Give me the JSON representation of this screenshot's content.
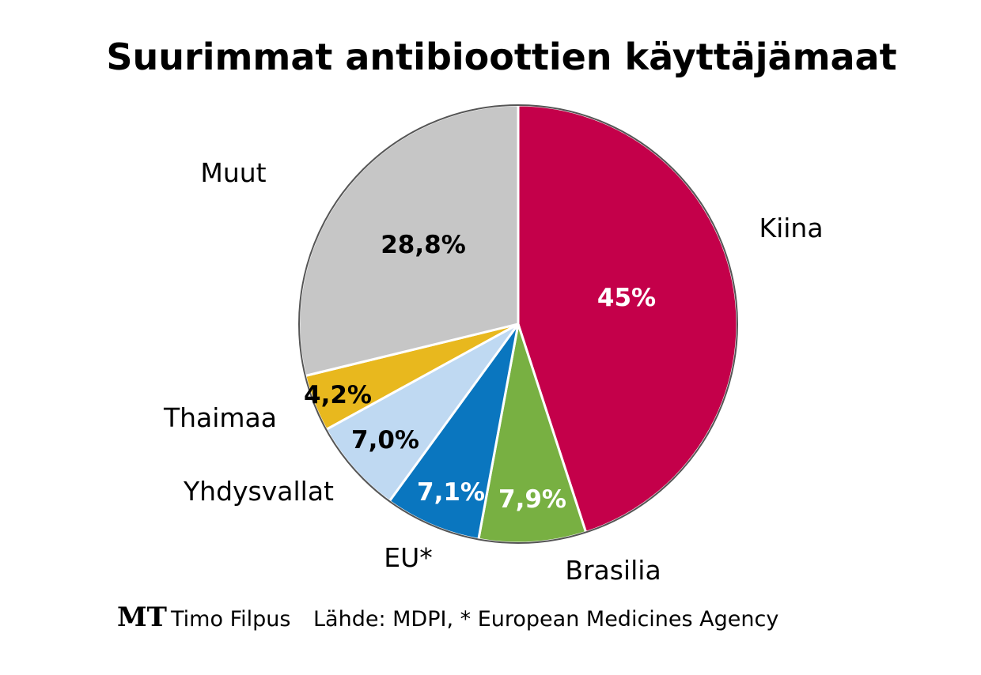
{
  "chart_data": {
    "type": "pie",
    "title": "Suurimmat antibioottien käyttäjämaat",
    "slices": [
      {
        "name": "Kiina",
        "value": 45.0,
        "label": "45%",
        "color": "#c4004a",
        "text_color": "#ffffff"
      },
      {
        "name": "Brasilia",
        "value": 7.9,
        "label": "7,9%",
        "color": "#78b042",
        "text_color": "#ffffff"
      },
      {
        "name": "EU*",
        "value": 7.1,
        "label": "7,1%",
        "color": "#0a76bf",
        "text_color": "#ffffff"
      },
      {
        "name": "Yhdysvallat",
        "value": 7.0,
        "label": "7,0%",
        "color": "#bfd9f2",
        "text_color": "#000000"
      },
      {
        "name": "Thaimaa",
        "value": 4.2,
        "label": "4,2%",
        "color": "#e8b81e",
        "text_color": "#000000"
      },
      {
        "name": "Muut",
        "value": 28.8,
        "label": "28,8%",
        "color": "#c6c6c6",
        "text_color": "#000000"
      }
    ],
    "start_direction": "top",
    "direction": "clockwise"
  },
  "footer": {
    "logo": "MT",
    "author": "Timo Filpus",
    "source": "Lähde: MDPI, * European Medicines Agency"
  }
}
